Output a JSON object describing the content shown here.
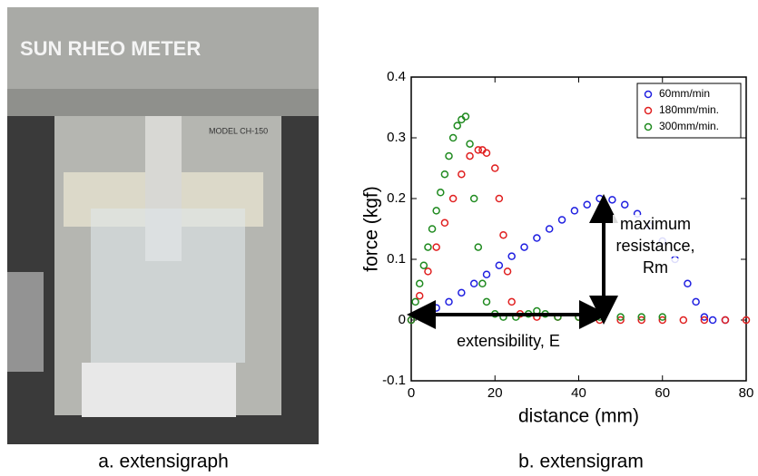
{
  "photo": {
    "label": "SUN RHEO METER",
    "model": "MODEL CH-150",
    "caption": "a. extensigraph"
  },
  "chart_data": {
    "type": "scatter",
    "caption": "b. extensigram",
    "x_label": "distance (mm)",
    "y_label": "force  (kgf)",
    "xlim": [
      0,
      80
    ],
    "xticks": [
      0,
      20,
      40,
      60,
      80
    ],
    "ylim": [
      -0.1,
      0.4
    ],
    "yticks": [
      -0.1,
      0,
      0.1,
      0.2,
      0.3,
      0.4
    ],
    "legend": "upper right",
    "annotations": {
      "resistance": [
        "maximum",
        "resistance,",
        "Rm"
      ],
      "extensibility": "extensibility, E"
    },
    "series": [
      {
        "name": "60mm/min",
        "color": "#1f1fe0",
        "x": [
          0,
          3,
          6,
          9,
          12,
          15,
          18,
          21,
          24,
          27,
          30,
          33,
          36,
          39,
          42,
          45,
          48,
          51,
          54,
          57,
          60,
          63,
          66,
          68,
          70,
          72,
          75
        ],
        "values": [
          0,
          0.01,
          0.02,
          0.03,
          0.045,
          0.06,
          0.075,
          0.09,
          0.105,
          0.12,
          0.135,
          0.15,
          0.165,
          0.18,
          0.19,
          0.2,
          0.198,
          0.19,
          0.175,
          0.155,
          0.13,
          0.1,
          0.06,
          0.03,
          0.005,
          0,
          0
        ]
      },
      {
        "name": "180mm/min.",
        "color": "#e01f1f",
        "x": [
          0,
          2,
          4,
          6,
          8,
          10,
          12,
          14,
          16,
          17,
          18,
          20,
          21,
          22,
          23,
          24,
          26,
          30,
          35,
          40,
          45,
          50,
          55,
          60,
          65,
          70,
          75,
          80
        ],
        "values": [
          0,
          0.04,
          0.08,
          0.12,
          0.16,
          0.2,
          0.24,
          0.27,
          0.28,
          0.28,
          0.275,
          0.25,
          0.2,
          0.14,
          0.08,
          0.03,
          0.01,
          0.005,
          0.005,
          0.005,
          0,
          0,
          0,
          0,
          0,
          0,
          0,
          0
        ]
      },
      {
        "name": "300mm/min.",
        "color": "#1f8a1f",
        "x": [
          0,
          1,
          2,
          3,
          4,
          5,
          6,
          7,
          8,
          9,
          10,
          11,
          12,
          13,
          14,
          15,
          16,
          17,
          18,
          20,
          22,
          25,
          28,
          30,
          32,
          35,
          40,
          45,
          50,
          55,
          60
        ],
        "values": [
          0,
          0.03,
          0.06,
          0.09,
          0.12,
          0.15,
          0.18,
          0.21,
          0.24,
          0.27,
          0.3,
          0.32,
          0.33,
          0.335,
          0.29,
          0.2,
          0.12,
          0.06,
          0.03,
          0.01,
          0.005,
          0.005,
          0.01,
          0.015,
          0.01,
          0.005,
          0.005,
          0.005,
          0.005,
          0.005,
          0.005
        ]
      }
    ]
  }
}
